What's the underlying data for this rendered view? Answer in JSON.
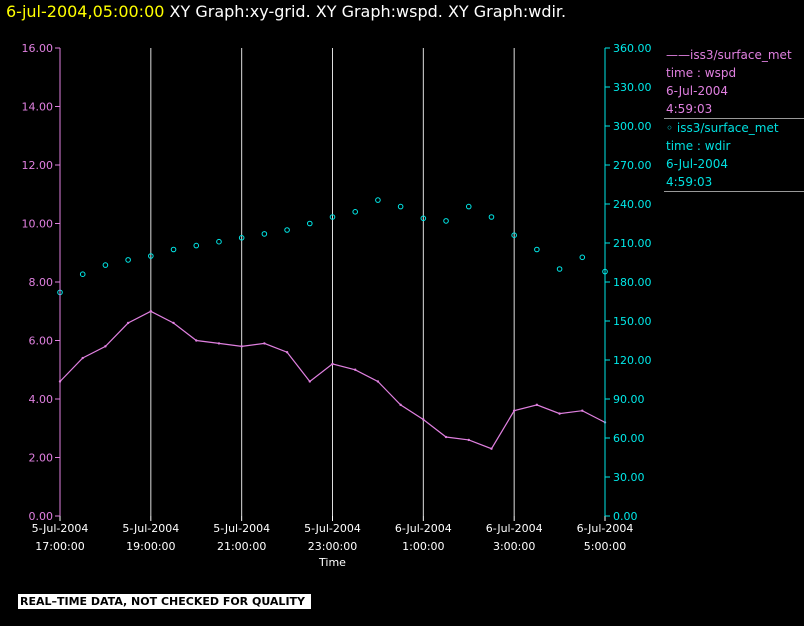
{
  "header": {
    "date_label": "6-jul-2004,05:00:00",
    "graph_label": "XY Graph:xy-grid.  XY Graph:wspd.  XY Graph:wdir."
  },
  "legend": [
    {
      "marker": "——",
      "name": "iss3/surface_met",
      "line2": "time : wspd",
      "line3": "6-Jul-2004",
      "line4": "4:59:03"
    },
    {
      "marker": "◦",
      "name": "iss3/surface_met",
      "line2": "time : wdir",
      "line3": "6-Jul-2004",
      "line4": "4:59:03"
    }
  ],
  "footer": {
    "quality_label": "REAL–TIME DATA, NOT CHECKED FOR QUALITY"
  },
  "colors": {
    "wspd": "#e080e0",
    "wdir": "#00e8e8",
    "grid": "#dddddd",
    "title_date": "#ffff00"
  },
  "chart_data": {
    "type": "line",
    "xlabel": "Time",
    "x_range_hours": [
      17,
      29
    ],
    "x_ticks": [
      {
        "top": "5-Jul-2004",
        "bottom": "17:00:00"
      },
      {
        "top": "5-Jul-2004",
        "bottom": "19:00:00"
      },
      {
        "top": "5-Jul-2004",
        "bottom": "21:00:00"
      },
      {
        "top": "5-Jul-2004",
        "bottom": "23:00:00"
      },
      {
        "top": "6-Jul-2004",
        "bottom": "1:00:00"
      },
      {
        "top": "6-Jul-2004",
        "bottom": "3:00:00"
      },
      {
        "top": "6-Jul-2004",
        "bottom": "5:00:00"
      }
    ],
    "y_left": {
      "min": 0,
      "max": 16,
      "ticks": [
        "0.00",
        "2.00",
        "4.00",
        "6.00",
        "8.00",
        "10.00",
        "12.00",
        "14.00",
        "16.00"
      ]
    },
    "y_right": {
      "min": 0,
      "max": 360,
      "ticks": [
        "0.00",
        "30.00",
        "60.00",
        "90.00",
        "120.00",
        "150.00",
        "180.00",
        "210.00",
        "240.00",
        "270.00",
        "300.00",
        "330.00",
        "360.00"
      ]
    },
    "series": [
      {
        "name": "iss3/surface_met",
        "axis": "left",
        "style": "line",
        "x": [
          17.0,
          17.5,
          18.0,
          18.5,
          19.0,
          19.5,
          20.0,
          20.5,
          21.0,
          21.5,
          22.0,
          22.5,
          23.0,
          23.5,
          24.0,
          24.5,
          25.0,
          25.5,
          26.0,
          26.5,
          27.0,
          27.5,
          28.0,
          28.5,
          29.0
        ],
        "values": [
          4.6,
          5.4,
          5.8,
          6.6,
          7.0,
          6.6,
          6.0,
          5.9,
          5.8,
          5.9,
          5.6,
          4.6,
          5.2,
          5.0,
          4.6,
          3.8,
          3.3,
          2.7,
          2.6,
          2.3,
          3.6,
          3.8,
          3.5,
          3.6,
          3.2
        ]
      },
      {
        "name": "iss3/surface_met",
        "axis": "right",
        "style": "scatter",
        "x": [
          17.0,
          17.5,
          18.0,
          18.5,
          19.0,
          19.5,
          20.0,
          20.5,
          21.0,
          21.5,
          22.0,
          22.5,
          23.0,
          23.5,
          24.0,
          24.5,
          25.0,
          25.5,
          26.0,
          26.5,
          27.0,
          27.5,
          28.0,
          28.5,
          29.0
        ],
        "values": [
          172,
          186,
          193,
          197,
          200,
          205,
          208,
          211,
          214,
          217,
          220,
          225,
          230,
          234,
          243,
          238,
          229,
          227,
          238,
          230,
          216,
          205,
          190,
          199,
          188
        ]
      }
    ]
  }
}
